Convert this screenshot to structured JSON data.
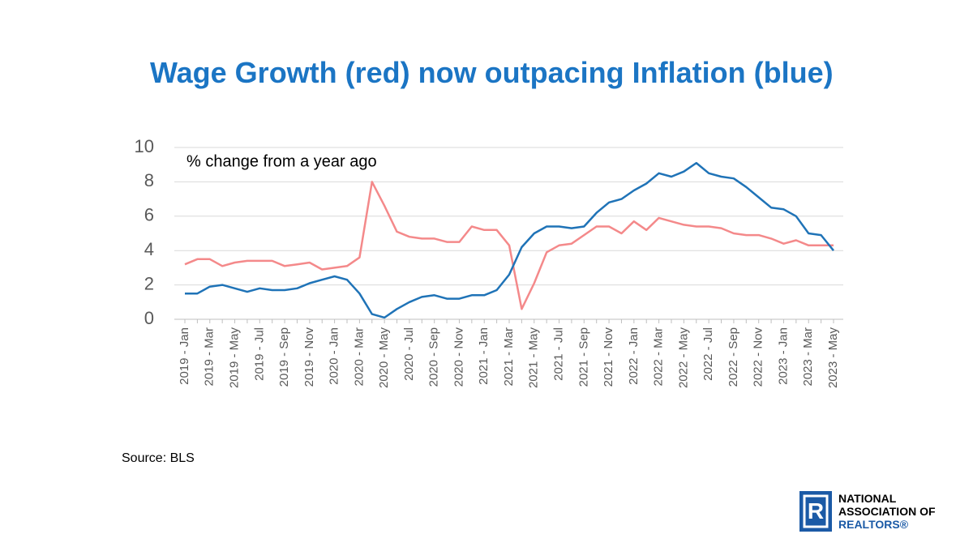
{
  "chart_data": {
    "type": "line",
    "title": "Wage Growth (red) now outpacing Inflation (blue)",
    "annotation": "% change from a year ago",
    "source": "Source: BLS",
    "categories": [
      "2019 - Jan",
      null,
      "2019 - Mar",
      null,
      "2019 - May",
      null,
      "2019 - Jul",
      null,
      "2019 - Sep",
      null,
      "2019 - Nov",
      null,
      "2020 - Jan",
      null,
      "2020 - Mar",
      null,
      "2020 - May",
      null,
      "2020 - Jul",
      null,
      "2020 - Sep",
      null,
      "2020 - Nov",
      null,
      "2021 - Jan",
      null,
      "2021 - Mar",
      null,
      "2021 - May",
      null,
      "2021 - Jul",
      null,
      "2021 - Sep",
      null,
      "2021 - Nov",
      null,
      "2022 - Jan",
      null,
      "2022 - Mar",
      null,
      "2022 - May",
      null,
      "2022 - Jul",
      null,
      "2022 - Sep",
      null,
      "2022 - Nov",
      null,
      "2023 - Jan",
      null,
      "2023 - Mar",
      null,
      "2023 - May"
    ],
    "series": [
      {
        "color": "#f4898a",
        "values": [
          3.2,
          3.5,
          3.5,
          3.1,
          3.3,
          3.4,
          3.4,
          3.4,
          3.1,
          3.2,
          3.3,
          2.9,
          3.0,
          3.1,
          3.6,
          8.0,
          6.6,
          5.1,
          4.8,
          4.7,
          4.7,
          4.5,
          4.5,
          5.4,
          5.2,
          5.2,
          4.3,
          0.6,
          2.1,
          3.9,
          4.3,
          4.4,
          4.9,
          5.4,
          5.4,
          5.0,
          5.7,
          5.2,
          5.9,
          5.7,
          5.5,
          5.4,
          5.4,
          5.3,
          5.0,
          4.9,
          4.9,
          4.7,
          4.4,
          4.6,
          4.3,
          4.3,
          4.3
        ]
      },
      {
        "color": "#1f73b7",
        "values": [
          1.5,
          1.5,
          1.9,
          2.0,
          1.8,
          1.6,
          1.8,
          1.7,
          1.7,
          1.8,
          2.1,
          2.3,
          2.5,
          2.3,
          1.5,
          0.3,
          0.1,
          0.6,
          1.0,
          1.3,
          1.4,
          1.2,
          1.2,
          1.4,
          1.4,
          1.7,
          2.6,
          4.2,
          5.0,
          5.4,
          5.4,
          5.3,
          5.4,
          6.2,
          6.8,
          7.0,
          7.5,
          7.9,
          8.5,
          8.3,
          8.6,
          9.1,
          8.5,
          8.3,
          8.2,
          7.7,
          7.1,
          6.5,
          6.4,
          6.0,
          5.0,
          4.9,
          4.0
        ]
      }
    ],
    "ylim": [
      0,
      10
    ],
    "yticks": [
      0,
      2,
      4,
      6,
      8,
      10
    ],
    "grid": true
  },
  "logo": {
    "lines": [
      "NATIONAL",
      "ASSOCIATION OF",
      "REALTORS®"
    ]
  }
}
